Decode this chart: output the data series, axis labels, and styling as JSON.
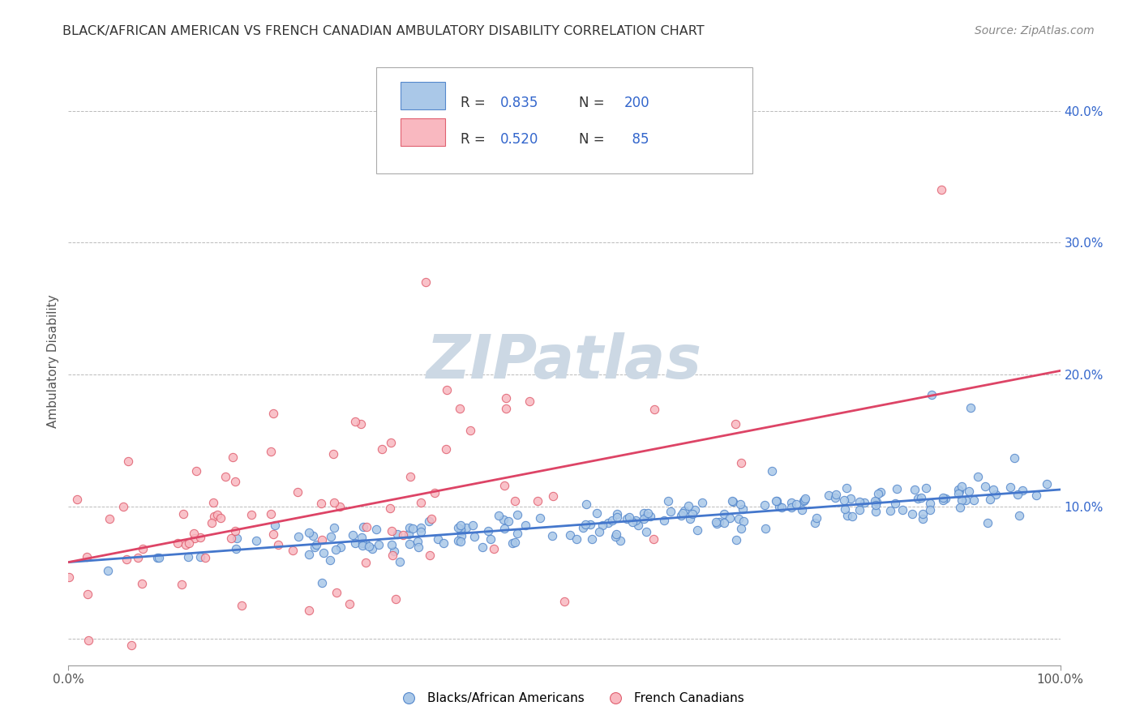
{
  "title": "BLACK/AFRICAN AMERICAN VS FRENCH CANADIAN AMBULATORY DISABILITY CORRELATION CHART",
  "source": "Source: ZipAtlas.com",
  "ylabel": "Ambulatory Disability",
  "xlim": [
    0,
    1.0
  ],
  "ylim": [
    -0.02,
    0.44
  ],
  "yticks": [
    0.0,
    0.1,
    0.2,
    0.3,
    0.4
  ],
  "ytick_labels": [
    "",
    "10.0%",
    "20.0%",
    "30.0%",
    "40.0%"
  ],
  "blue_R": 0.835,
  "blue_N": 200,
  "pink_R": 0.52,
  "pink_N": 85,
  "blue_fill": "#aac8e8",
  "pink_fill": "#f9b8c0",
  "blue_edge": "#5588cc",
  "pink_edge": "#e06070",
  "blue_line": "#4477cc",
  "pink_line": "#dd4466",
  "bg_color": "#ffffff",
  "grid_color": "#bbbbbb",
  "title_color": "#333333",
  "watermark_color": "#ccd8e4",
  "legend_value_color": "#3366cc",
  "text_color": "#555555",
  "blue_slope": 0.055,
  "blue_intercept": 0.058,
  "pink_slope": 0.145,
  "pink_intercept": 0.058
}
